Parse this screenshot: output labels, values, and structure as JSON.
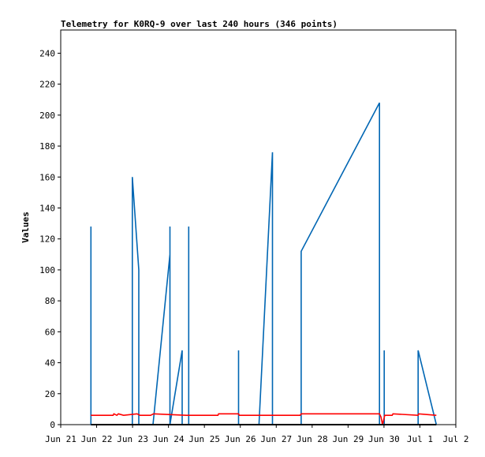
{
  "chart_data": {
    "type": "line",
    "title": "Telemetry for K0RQ-9 over last 240 hours (346 points)",
    "xlabel": "",
    "ylabel": "Values",
    "ylim": [
      0,
      255
    ],
    "yticks": [
      0,
      20,
      40,
      60,
      80,
      100,
      120,
      140,
      160,
      180,
      200,
      220,
      240
    ],
    "xlim": [
      "2023-06-21T00:00",
      "2023-07-02T00:00"
    ],
    "xticks": [
      {
        "label": "Jun 21",
        "x": "2023-06-21"
      },
      {
        "label": "Jun 22",
        "x": "2023-06-22"
      },
      {
        "label": "Jun 23",
        "x": "2023-06-23"
      },
      {
        "label": "Jun 24",
        "x": "2023-06-24"
      },
      {
        "label": "Jun 25",
        "x": "2023-06-25"
      },
      {
        "label": "Jun 26",
        "x": "2023-06-26"
      },
      {
        "label": "Jun 27",
        "x": "2023-06-27"
      },
      {
        "label": "Jun 28",
        "x": "2023-06-28"
      },
      {
        "label": "Jun 29",
        "x": "2023-06-29"
      },
      {
        "label": "Jun 30",
        "x": "2023-06-30"
      },
      {
        "label": "Jul 1",
        "x": "2023-07-01"
      },
      {
        "label": "Jul 2",
        "x": "2023-07-02"
      }
    ],
    "grid": false,
    "series": [
      {
        "color": "#0066b3",
        "points": [
          [
            "2023-06-21T20:10",
            0
          ],
          [
            "2023-06-21T20:10",
            128
          ],
          [
            "2023-06-21T20:10",
            0
          ],
          [
            "2023-06-22T23:50",
            0
          ],
          [
            "2023-06-22T23:50",
            160
          ],
          [
            "2023-06-23T04:10",
            100
          ],
          [
            "2023-06-23T04:10",
            0
          ],
          [
            "2023-06-23T13:40",
            0
          ],
          [
            "2023-06-24T01:00",
            110
          ],
          [
            "2023-06-24T01:00",
            128
          ],
          [
            "2023-06-24T01:00",
            0
          ],
          [
            "2023-06-24T09:10",
            48
          ],
          [
            "2023-06-24T09:10",
            0
          ],
          [
            "2023-06-24T13:30",
            0
          ],
          [
            "2023-06-24T13:30",
            128
          ],
          [
            "2023-06-24T13:30",
            0
          ],
          [
            "2023-06-25T22:50",
            0
          ],
          [
            "2023-06-25T22:50",
            48
          ],
          [
            "2023-06-25T22:50",
            0
          ],
          [
            "2023-06-26T12:30",
            0
          ],
          [
            "2023-06-26T21:30",
            176
          ],
          [
            "2023-06-26T21:30",
            0
          ],
          [
            "2023-06-27T16:40",
            0
          ],
          [
            "2023-06-27T16:40",
            112
          ],
          [
            "2023-06-29T21:00",
            208
          ],
          [
            "2023-06-29T21:00",
            0
          ],
          [
            "2023-06-30T00:10",
            0
          ],
          [
            "2023-06-30T00:10",
            48
          ],
          [
            "2023-06-30T00:10",
            0
          ],
          [
            "2023-06-30T22:50",
            0
          ],
          [
            "2023-06-30T22:50",
            48
          ],
          [
            "2023-07-01T11:00",
            0
          ]
        ]
      },
      {
        "color": "#ff0000",
        "points": [
          [
            "2023-06-21T20:10",
            6
          ],
          [
            "2023-06-22T11:00",
            6
          ],
          [
            "2023-06-22T11:30",
            7
          ],
          [
            "2023-06-22T13:30",
            6
          ],
          [
            "2023-06-22T14:30",
            7
          ],
          [
            "2023-06-22T18:00",
            6
          ],
          [
            "2023-06-23T03:00",
            7
          ],
          [
            "2023-06-23T05:00",
            6
          ],
          [
            "2023-06-23T10:00",
            6
          ],
          [
            "2023-06-23T12:00",
            6
          ],
          [
            "2023-06-23T14:00",
            7
          ],
          [
            "2023-06-24T12:00",
            6
          ],
          [
            "2023-06-24T22:00",
            6
          ],
          [
            "2023-06-25T00:00",
            6
          ],
          [
            "2023-06-25T09:00",
            6
          ],
          [
            "2023-06-25T09:30",
            7
          ],
          [
            "2023-06-25T22:50",
            7
          ],
          [
            "2023-06-25T23:20",
            6
          ],
          [
            "2023-06-26T12:00",
            6
          ],
          [
            "2023-06-27T16:00",
            6
          ],
          [
            "2023-06-27T16:40",
            7
          ],
          [
            "2023-06-29T21:00",
            7
          ],
          [
            "2023-06-29T22:00",
            5
          ],
          [
            "2023-06-29T23:00",
            0
          ],
          [
            "2023-06-30T00:30",
            6
          ],
          [
            "2023-06-30T05:30",
            6
          ],
          [
            "2023-06-30T06:00",
            7
          ],
          [
            "2023-06-30T22:50",
            6
          ],
          [
            "2023-06-30T23:10",
            7
          ],
          [
            "2023-07-01T11:00",
            6
          ]
        ]
      },
      {
        "color": "#000000",
        "points": [
          [
            "2023-06-21T20:10",
            0
          ],
          [
            "2023-07-01T11:00",
            0
          ]
        ]
      }
    ]
  }
}
